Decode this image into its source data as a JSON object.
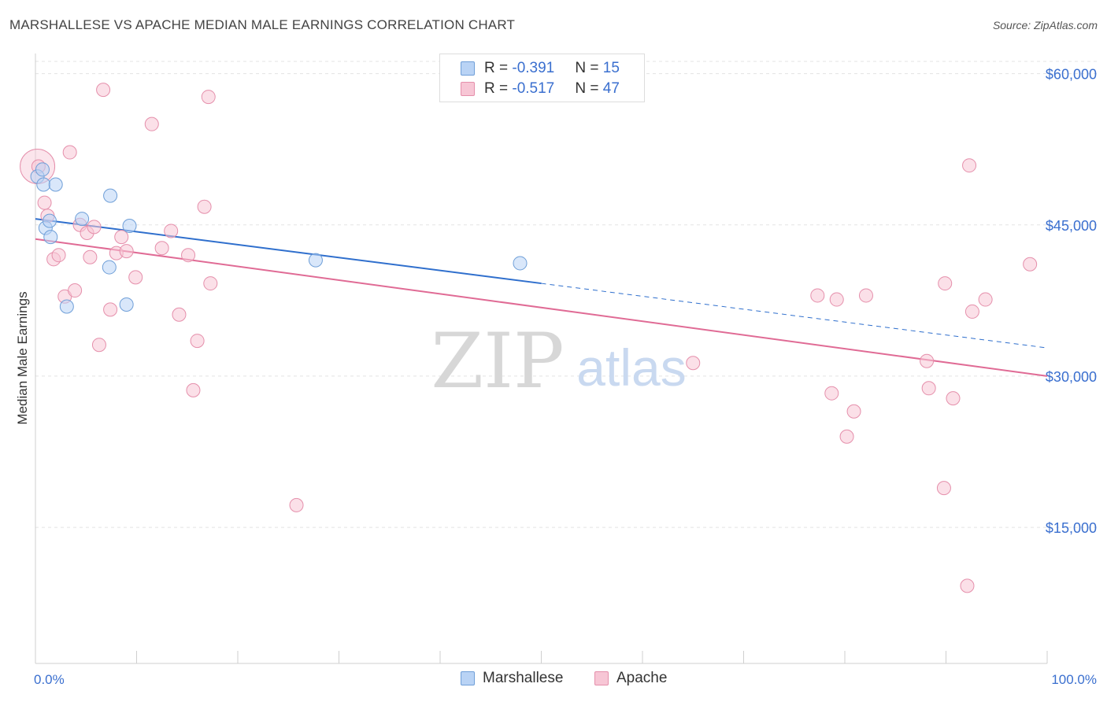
{
  "title": "MARSHALLESE VS APACHE MEDIAN MALE EARNINGS CORRELATION CHART",
  "source": "Source: ZipAtlas.com",
  "watermark": {
    "zip": "ZIP",
    "atlas": "atlas"
  },
  "colors": {
    "marshallese_fill": "#b9d3f5",
    "marshallese_stroke": "#6f9fd8",
    "marshallese_line": "#2f6fcd",
    "apache_fill": "#f7c6d5",
    "apache_stroke": "#e58fab",
    "apache_line": "#e06b95",
    "axis_label": "#3a6fcf",
    "grid": "#e3e3e3"
  },
  "legend": {
    "rows": [
      {
        "r_label": "R = ",
        "r_value": "-0.391",
        "n_label": "N = ",
        "n_value": "15"
      },
      {
        "r_label": "R = ",
        "r_value": "-0.517",
        "n_label": "N = ",
        "n_value": "47"
      }
    ]
  },
  "bottom_legend": [
    {
      "label": "Marshallese"
    },
    {
      "label": "Apache"
    }
  ],
  "chart_data": {
    "type": "scatter",
    "xlabel": "",
    "ylabel": "Median Male Earnings",
    "xlim": [
      0,
      100
    ],
    "ylim": [
      1500,
      62000
    ],
    "x_tick_labels": [
      "0.0%",
      "100.0%"
    ],
    "y_ticks": [
      {
        "value": 60000,
        "label": "$60,000"
      },
      {
        "value": 45000,
        "label": "$45,000"
      },
      {
        "value": 30000,
        "label": "$30,000"
      },
      {
        "value": 15000,
        "label": "$15,000"
      }
    ],
    "grid": true,
    "series": [
      {
        "name": "Marshallese",
        "points": [
          [
            0.2,
            49800
          ],
          [
            0.7,
            50500
          ],
          [
            0.8,
            49000
          ],
          [
            2.0,
            49000
          ],
          [
            1.0,
            44700
          ],
          [
            1.5,
            43800
          ],
          [
            1.4,
            45400
          ],
          [
            4.6,
            45600
          ],
          [
            3.1,
            36900
          ],
          [
            7.3,
            40800
          ],
          [
            7.4,
            47900
          ],
          [
            9.0,
            37100
          ],
          [
            9.3,
            44900
          ],
          [
            27.7,
            41500
          ],
          [
            47.9,
            41200
          ]
        ],
        "trend": {
          "x0": 0,
          "y0": 45600,
          "x1": 50,
          "y1": 39200,
          "x_dash_end": 100,
          "y_dash_end": 32800
        }
      },
      {
        "name": "Apache",
        "points": [
          [
            0.3,
            50800
          ],
          [
            0.9,
            47200
          ],
          [
            1.2,
            45900
          ],
          [
            1.8,
            41600
          ],
          [
            2.3,
            42000
          ],
          [
            2.9,
            37900
          ],
          [
            3.4,
            52200
          ],
          [
            3.9,
            38500
          ],
          [
            4.4,
            45000
          ],
          [
            5.1,
            44200
          ],
          [
            5.4,
            41800
          ],
          [
            5.8,
            44800
          ],
          [
            6.3,
            33100
          ],
          [
            6.7,
            58400
          ],
          [
            7.4,
            36600
          ],
          [
            8.0,
            42200
          ],
          [
            8.5,
            43800
          ],
          [
            9.0,
            42400
          ],
          [
            9.9,
            39800
          ],
          [
            11.5,
            55000
          ],
          [
            12.5,
            42700
          ],
          [
            13.4,
            44400
          ],
          [
            14.2,
            36100
          ],
          [
            15.1,
            42000
          ],
          [
            15.6,
            28600
          ],
          [
            16.0,
            33500
          ],
          [
            16.7,
            46800
          ],
          [
            17.1,
            57700
          ],
          [
            17.3,
            39200
          ],
          [
            25.8,
            17200
          ],
          [
            65.0,
            31300
          ],
          [
            77.3,
            38000
          ],
          [
            78.7,
            28300
          ],
          [
            79.2,
            37600
          ],
          [
            80.2,
            24000
          ],
          [
            80.9,
            26500
          ],
          [
            82.1,
            38000
          ],
          [
            88.1,
            31500
          ],
          [
            88.3,
            28800
          ],
          [
            89.8,
            18900
          ],
          [
            89.9,
            39200
          ],
          [
            90.7,
            27800
          ],
          [
            92.1,
            9200
          ],
          [
            92.3,
            50900
          ],
          [
            92.6,
            36400
          ],
          [
            93.9,
            37600
          ],
          [
            98.3,
            41100
          ]
        ],
        "trend": {
          "x0": 0,
          "y0": 43600,
          "x1": 100,
          "y1": 30000
        }
      }
    ]
  }
}
